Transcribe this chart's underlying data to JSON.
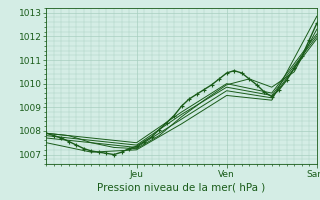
{
  "background_color": "#d4ede5",
  "plot_bg_color": "#d4ede5",
  "grid_color": "#a8cfc0",
  "line_color": "#1a5c1a",
  "marker_color": "#1a5c1a",
  "title": "Pression niveau de la mer( hPa )",
  "yticks": [
    1007,
    1008,
    1009,
    1010,
    1011,
    1012,
    1013
  ],
  "ylim": [
    1006.6,
    1013.2
  ],
  "xlim": [
    0,
    72
  ],
  "day_ticks": [
    24,
    48,
    72
  ],
  "day_labels": [
    "Jeu",
    "Ven",
    "Sam"
  ],
  "series": [
    [
      0,
      1007.9,
      2,
      1007.8,
      4,
      1007.7,
      6,
      1007.55,
      8,
      1007.4,
      10,
      1007.25,
      12,
      1007.15,
      14,
      1007.1,
      16,
      1007.05,
      18,
      1007.0,
      20,
      1007.1,
      22,
      1007.25,
      24,
      1007.35,
      26,
      1007.55,
      28,
      1007.75,
      30,
      1008.05,
      32,
      1008.35,
      34,
      1008.65,
      36,
      1009.05,
      38,
      1009.35,
      40,
      1009.55,
      42,
      1009.75,
      44,
      1009.95,
      46,
      1010.2,
      48,
      1010.45,
      50,
      1010.55,
      52,
      1010.45,
      54,
      1010.2,
      56,
      1009.95,
      58,
      1009.65,
      60,
      1009.45,
      62,
      1009.75,
      64,
      1010.15,
      66,
      1010.65,
      68,
      1011.15,
      70,
      1011.85,
      72,
      1012.55
    ],
    [
      0,
      1007.9,
      6,
      1007.8,
      12,
      1007.5,
      18,
      1007.3,
      24,
      1007.25,
      30,
      1007.8,
      36,
      1008.6,
      42,
      1009.3,
      48,
      1009.95,
      54,
      1010.2,
      60,
      1009.85,
      66,
      1010.5,
      72,
      1012.3
    ],
    [
      0,
      1007.9,
      24,
      1007.5,
      36,
      1008.8,
      48,
      1010.0,
      60,
      1009.6,
      72,
      1012.1
    ],
    [
      0,
      1007.8,
      24,
      1007.4,
      36,
      1008.7,
      48,
      1009.85,
      60,
      1009.5,
      72,
      1012.0
    ],
    [
      0,
      1007.7,
      24,
      1007.3,
      36,
      1008.5,
      48,
      1009.7,
      60,
      1009.4,
      72,
      1011.9
    ],
    [
      0,
      1007.5,
      12,
      1007.1,
      24,
      1007.2,
      36,
      1008.3,
      48,
      1009.5,
      60,
      1009.3,
      72,
      1012.85
    ]
  ],
  "main_series_idx": 0,
  "title_fontsize": 7.5,
  "tick_fontsize": 6.5
}
